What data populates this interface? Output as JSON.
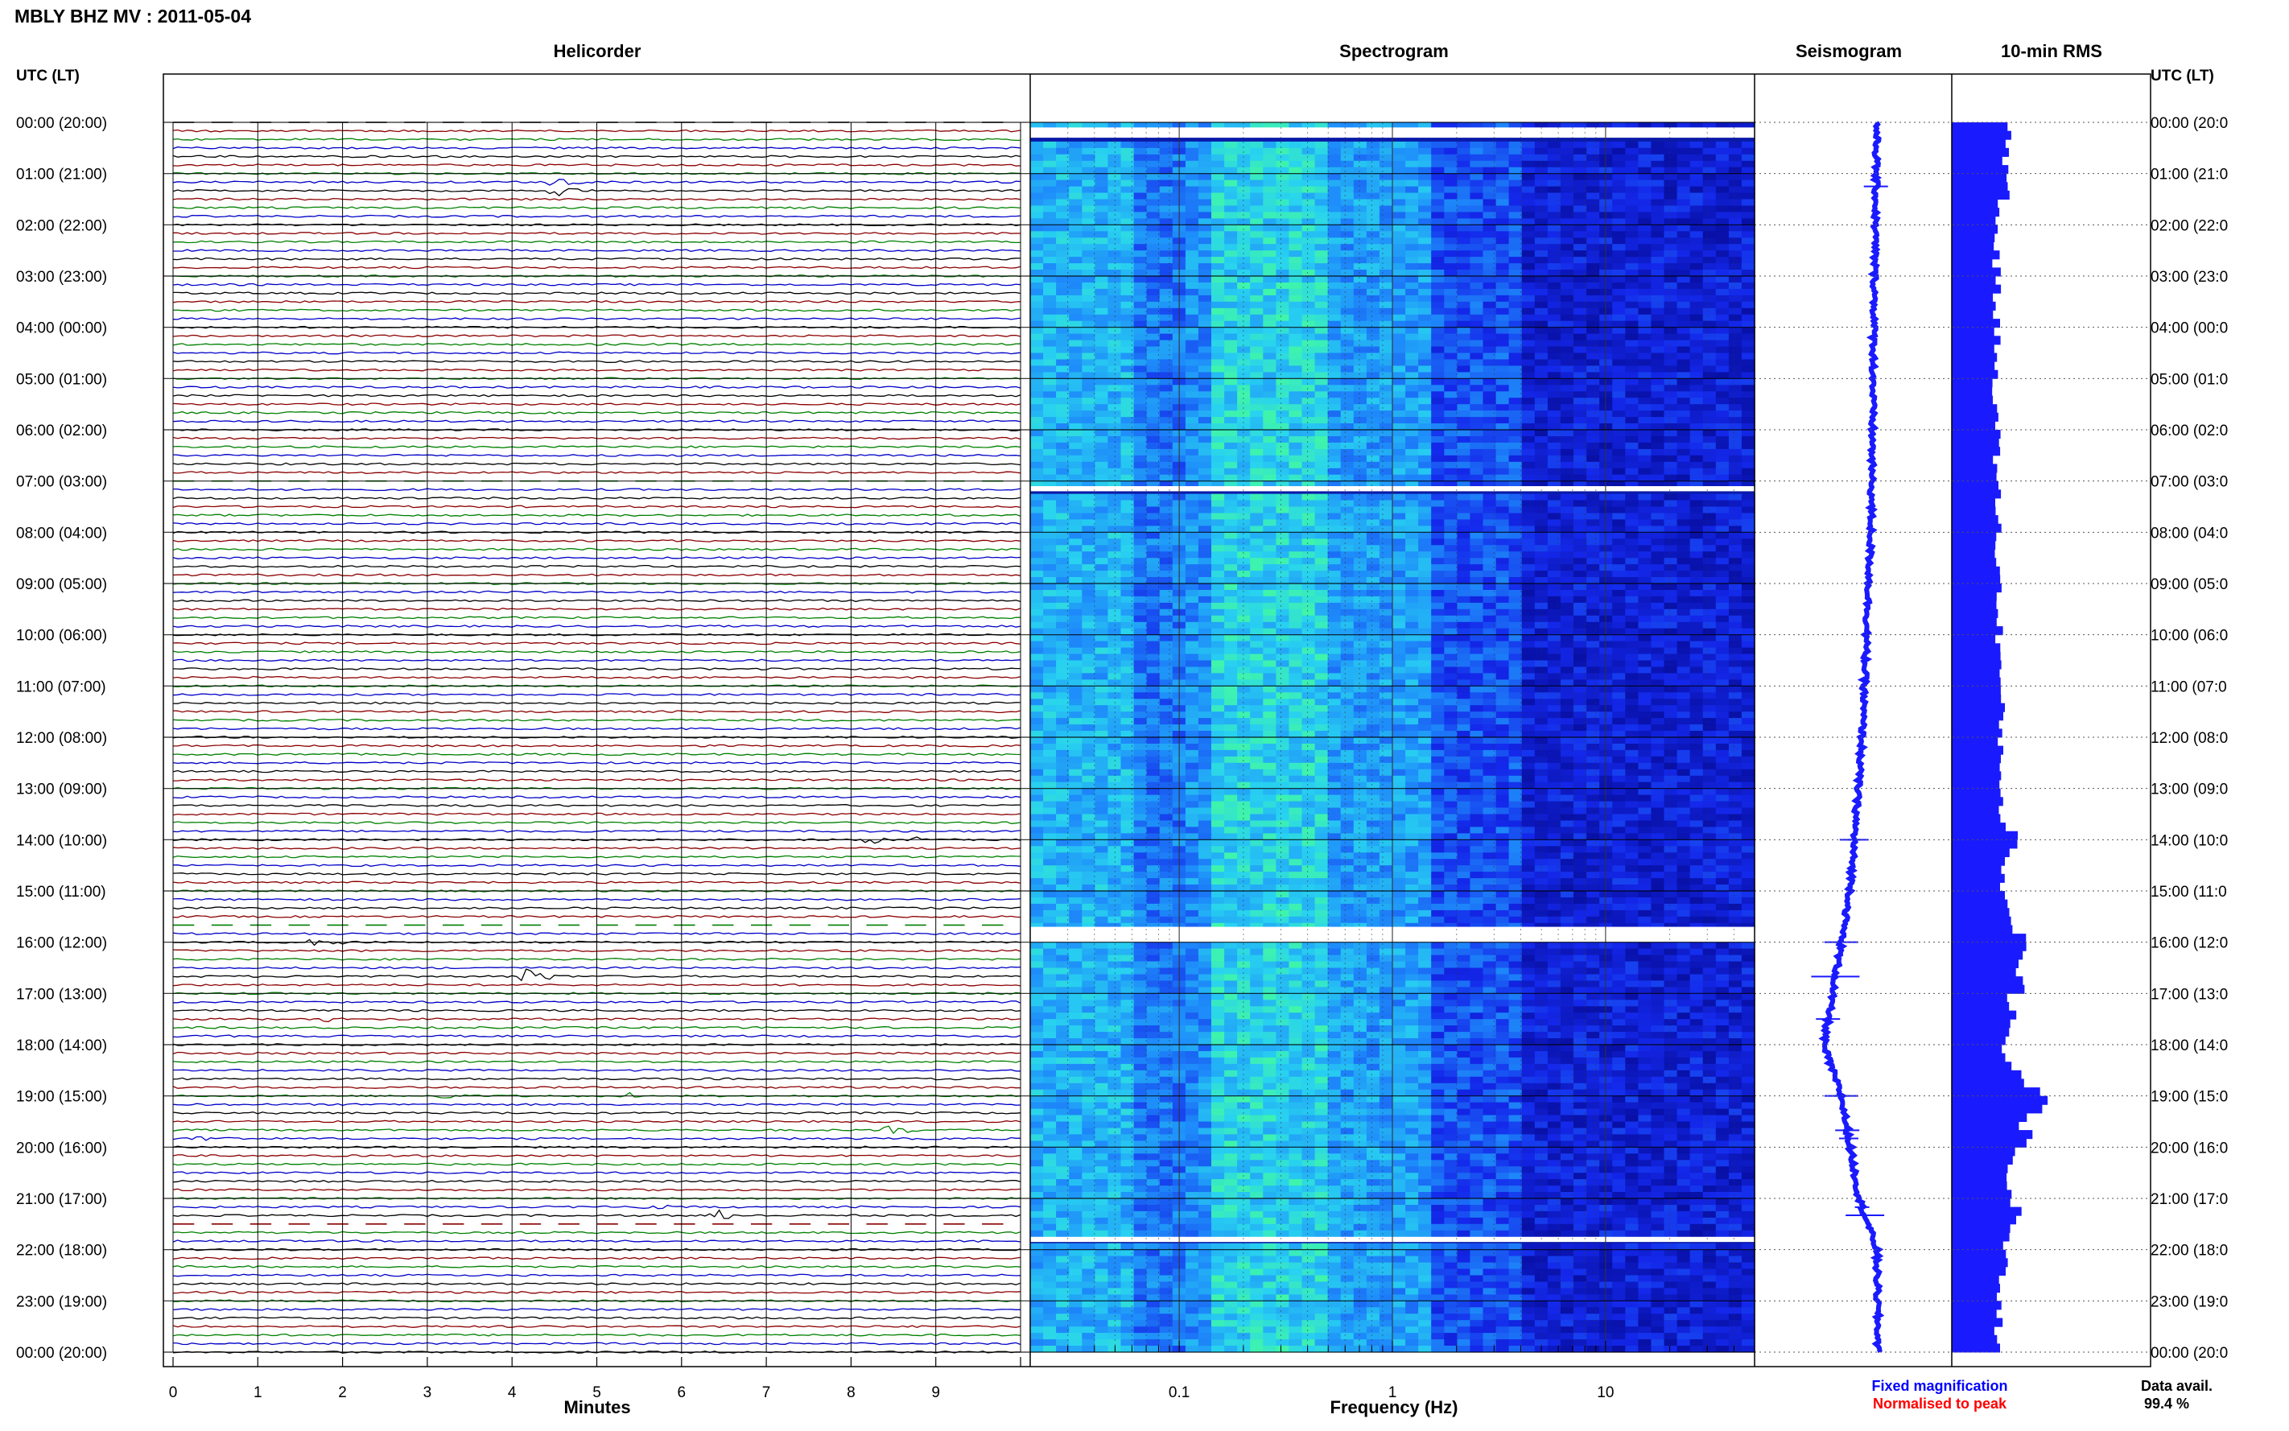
{
  "header": {
    "title": "MBLY BHZ MV : 2011-05-04"
  },
  "panels": {
    "helicorder": "Helicorder",
    "spectrogram": "Spectrogram",
    "seismogram": "Seismogram",
    "rms": "10-min RMS"
  },
  "axis": {
    "left_header": "UTC (LT)",
    "right_header": "UTC (LT)",
    "hours": [
      "00:00 (20:00)",
      "01:00 (21:00)",
      "02:00 (22:00)",
      "03:00 (23:00)",
      "04:00 (00:00)",
      "05:00 (01:00)",
      "06:00 (02:00)",
      "07:00 (03:00)",
      "08:00 (04:00)",
      "09:00 (05:00)",
      "10:00 (06:00)",
      "11:00 (07:00)",
      "12:00 (08:00)",
      "13:00 (09:00)",
      "14:00 (10:00)",
      "15:00 (11:00)",
      "16:00 (12:00)",
      "17:00 (13:00)",
      "18:00 (14:00)",
      "19:00 (15:00)",
      "20:00 (16:00)",
      "21:00 (17:00)",
      "22:00 (18:00)",
      "23:00 (19:00)",
      "00:00 (20:00)"
    ],
    "right_hours": [
      "00:00 (20:0",
      "01:00 (21:0",
      "02:00 (22:0",
      "03:00 (23:0",
      "04:00 (00:0",
      "05:00 (01:0",
      "06:00 (02:0",
      "07:00 (03:0",
      "08:00 (04:0",
      "09:00 (05:0",
      "10:00 (06:0",
      "11:00 (07:0",
      "12:00 (08:0",
      "13:00 (09:0",
      "14:00 (10:0",
      "15:00 (11:0",
      "16:00 (12:0",
      "17:00 (13:0",
      "18:00 (14:0",
      "19:00 (15:0",
      "20:00 (16:0",
      "21:00 (17:0",
      "22:00 (18:0",
      "23:00 (19:0",
      "00:00 (20:0"
    ],
    "minutes_ticks": [
      "0",
      "1",
      "2",
      "3",
      "4",
      "5",
      "6",
      "7",
      "8",
      "9"
    ],
    "minutes_label": "Minutes",
    "freq_ticks": [
      "0.1",
      "1",
      "10"
    ],
    "freq_label": "Frequency (Hz)"
  },
  "legend": {
    "fixed": "Fixed magnification",
    "normalised": "Normalised to peak",
    "fixed_color": "#0000ff",
    "normalised_color": "#ff0000"
  },
  "availability": {
    "label": "Data avail.",
    "value": "99.4 %"
  },
  "colors": {
    "trace": [
      "#000000",
      "#8b0000",
      "#008000",
      "#0000c8"
    ],
    "seismo": "#1a1aff",
    "rms": "#1a1aff",
    "spec_low": "#00007a",
    "spec_high": "#3cff8c"
  },
  "chart_data": {
    "type": "heatmap",
    "title": "MBLY BHZ MV : 2011-05-04",
    "helicorder": {
      "xlabel": "Minutes",
      "xlim": [
        0,
        10
      ],
      "lines_per_hour": 6,
      "hours": 24,
      "events": [
        {
          "hour": 1.25,
          "minute": 4.55,
          "amplitude": 0.5
        },
        {
          "hour": 14.0,
          "minute": 8.25,
          "amplitude": 0.6
        },
        {
          "hour": 14.0,
          "minute": 8.8,
          "amplitude": 0.3
        },
        {
          "hour": 16.0,
          "minute": 1.7,
          "amplitude": 0.7
        },
        {
          "hour": 16.67,
          "minute": 4.2,
          "amplitude": 1.0
        },
        {
          "hour": 17.5,
          "minute": 1.75,
          "amplitude": 0.5
        },
        {
          "hour": 19.0,
          "minute": 3.05,
          "amplitude": 0.7
        },
        {
          "hour": 19.0,
          "minute": 5.4,
          "amplitude": 0.3
        },
        {
          "hour": 19.67,
          "minute": 8.5,
          "amplitude": 0.5
        },
        {
          "hour": 19.83,
          "minute": 0.35,
          "amplitude": 0.4
        },
        {
          "hour": 21.33,
          "minute": 6.4,
          "amplitude": 0.8
        },
        {
          "hour": 21.17,
          "minute": 5.6,
          "amplitude": 0.3
        }
      ],
      "gaps": [
        {
          "hour": 0.0,
          "note": "dashed"
        },
        {
          "hour": 7.0,
          "note": "dashed"
        },
        {
          "hour": 15.67,
          "note": "dashed"
        },
        {
          "hour": 21.5,
          "note": "dashed"
        }
      ]
    },
    "spectrogram": {
      "xlabel": "Frequency (Hz)",
      "xscale": "log",
      "xlim": [
        0.02,
        50
      ],
      "data_gaps_hours": [
        [
          0.1,
          0.3
        ],
        [
          7.1,
          7.2
        ],
        [
          15.7,
          16.0
        ],
        [
          21.75,
          21.85
        ]
      ]
    },
    "seismogram": {
      "x_by_hour": [
        {
          "hour": 0,
          "x": 0.0
        },
        {
          "hour": 4,
          "x": -0.05
        },
        {
          "hour": 8,
          "x": -0.1
        },
        {
          "hour": 12,
          "x": -0.25
        },
        {
          "hour": 15,
          "x": -0.45
        },
        {
          "hour": 17,
          "x": -0.75
        },
        {
          "hour": 18,
          "x": -0.9
        },
        {
          "hour": 19,
          "x": -0.6
        },
        {
          "hour": 21,
          "x": -0.3
        },
        {
          "hour": 22,
          "x": 0.0
        },
        {
          "hour": 24,
          "x": 0.02
        }
      ]
    },
    "rms": {
      "interval_minutes": 10,
      "level_by_hour": [
        {
          "hour": 0,
          "level": 0.4
        },
        {
          "hour": 2,
          "level": 0.3
        },
        {
          "hour": 6,
          "level": 0.3
        },
        {
          "hour": 10,
          "level": 0.32
        },
        {
          "hour": 15,
          "level": 0.35
        },
        {
          "hour": 16,
          "level": 0.45
        },
        {
          "hour": 18,
          "level": 0.35
        },
        {
          "hour": 19,
          "level": 0.55
        },
        {
          "hour": 20,
          "level": 0.4
        },
        {
          "hour": 24,
          "level": 0.3
        }
      ]
    }
  }
}
